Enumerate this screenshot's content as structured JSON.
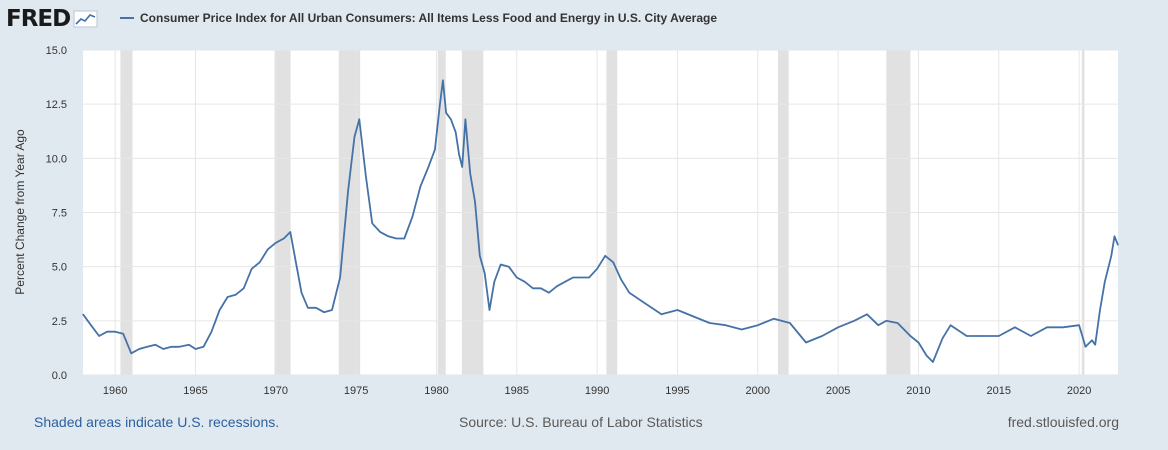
{
  "brand": {
    "logo_text": "FRED"
  },
  "chart_data": {
    "type": "line",
    "title": "Consumer Price Index for All Urban Consumers: All Items Less Food and Energy in U.S. City Average",
    "ylabel": "Percent Change from Year Ago",
    "xlabel": "",
    "xlim": [
      1958.0,
      2022.42
    ],
    "ylim": [
      0,
      15
    ],
    "yticks": [
      "0.0",
      "2.5",
      "5.0",
      "7.5",
      "10.0",
      "12.5",
      "15.0"
    ],
    "xticks": [
      "1960",
      "1965",
      "1970",
      "1975",
      "1980",
      "1985",
      "1990",
      "1995",
      "2000",
      "2005",
      "2010",
      "2015",
      "2020"
    ],
    "grid": true,
    "line_color": "#4572a7",
    "recession_color": "#e1e1e1",
    "recessions": [
      [
        1960.33,
        1961.08
      ],
      [
        1969.92,
        1970.92
      ],
      [
        1973.92,
        1975.25
      ],
      [
        1980.08,
        1980.58
      ],
      [
        1981.58,
        1982.92
      ],
      [
        1990.58,
        1991.25
      ],
      [
        2001.25,
        2001.92
      ],
      [
        2008.0,
        2009.5
      ],
      [
        2020.17,
        2020.33
      ]
    ],
    "series": [
      {
        "name": "Consumer Price Index for All Urban Consumers: All Items Less Food and Energy in U.S. City Average",
        "x": [
          1958.0,
          1958.5,
          1959.0,
          1959.5,
          1960.0,
          1960.5,
          1961.0,
          1961.5,
          1962.0,
          1962.5,
          1963.0,
          1963.5,
          1964.0,
          1964.6,
          1965.0,
          1965.5,
          1966.0,
          1966.5,
          1967.0,
          1967.5,
          1968.0,
          1968.5,
          1969.0,
          1969.5,
          1970.0,
          1970.5,
          1970.9,
          1971.3,
          1971.6,
          1972.0,
          1972.5,
          1973.0,
          1973.5,
          1974.0,
          1974.5,
          1974.9,
          1975.2,
          1975.6,
          1976.0,
          1976.5,
          1977.0,
          1977.5,
          1978.0,
          1978.5,
          1979.0,
          1979.5,
          1979.9,
          1980.2,
          1980.4,
          1980.6,
          1980.9,
          1981.2,
          1981.4,
          1981.6,
          1981.8,
          1982.1,
          1982.4,
          1982.7,
          1983.0,
          1983.3,
          1983.6,
          1984.0,
          1984.5,
          1985.0,
          1985.5,
          1986.0,
          1986.5,
          1987.0,
          1987.5,
          1988.0,
          1988.5,
          1989.0,
          1989.5,
          1990.0,
          1990.5,
          1991.0,
          1991.5,
          1992.0,
          1993.0,
          1994.0,
          1995.0,
          1996.0,
          1997.0,
          1998.0,
          1999.0,
          2000.0,
          2001.0,
          2002.0,
          2003.0,
          2004.0,
          2005.0,
          2006.0,
          2006.8,
          2007.5,
          2008.0,
          2008.7,
          2009.5,
          2010.0,
          2010.5,
          2010.9,
          2011.5,
          2012.0,
          2013.0,
          2014.0,
          2015.0,
          2016.0,
          2017.0,
          2018.0,
          2019.0,
          2020.0,
          2020.4,
          2020.8,
          2021.0,
          2021.3,
          2021.6,
          2022.0,
          2022.2,
          2022.42
        ],
        "values": [
          2.8,
          2.3,
          1.8,
          2.0,
          2.0,
          1.9,
          1.0,
          1.2,
          1.3,
          1.4,
          1.2,
          1.3,
          1.3,
          1.4,
          1.2,
          1.3,
          2.0,
          3.0,
          3.6,
          3.7,
          4.0,
          4.9,
          5.2,
          5.8,
          6.1,
          6.3,
          6.6,
          5.0,
          3.8,
          3.1,
          3.1,
          2.9,
          3.0,
          4.5,
          8.5,
          11.0,
          11.8,
          9.2,
          7.0,
          6.6,
          6.4,
          6.3,
          6.3,
          7.3,
          8.7,
          9.6,
          10.4,
          12.4,
          13.6,
          12.1,
          11.8,
          11.2,
          10.2,
          9.6,
          11.8,
          9.3,
          8.0,
          5.5,
          4.7,
          3.0,
          4.3,
          5.1,
          5.0,
          4.5,
          4.3,
          4.0,
          4.0,
          3.8,
          4.1,
          4.3,
          4.5,
          4.5,
          4.5,
          4.9,
          5.5,
          5.2,
          4.4,
          3.8,
          3.3,
          2.8,
          3.0,
          2.7,
          2.4,
          2.3,
          2.1,
          2.3,
          2.6,
          2.4,
          1.5,
          1.8,
          2.2,
          2.5,
          2.8,
          2.3,
          2.5,
          2.4,
          1.8,
          1.5,
          0.9,
          0.6,
          1.7,
          2.3,
          1.8,
          1.8,
          1.8,
          2.2,
          1.8,
          2.2,
          2.2,
          2.3,
          1.3,
          1.6,
          1.4,
          3.0,
          4.3,
          5.5,
          6.4,
          6.0
        ]
      }
    ]
  },
  "footer": {
    "note": "Shaded areas indicate U.S. recessions.",
    "source": "Source: U.S. Bureau of Labor Statistics",
    "site": "fred.stlouisfed.org"
  }
}
